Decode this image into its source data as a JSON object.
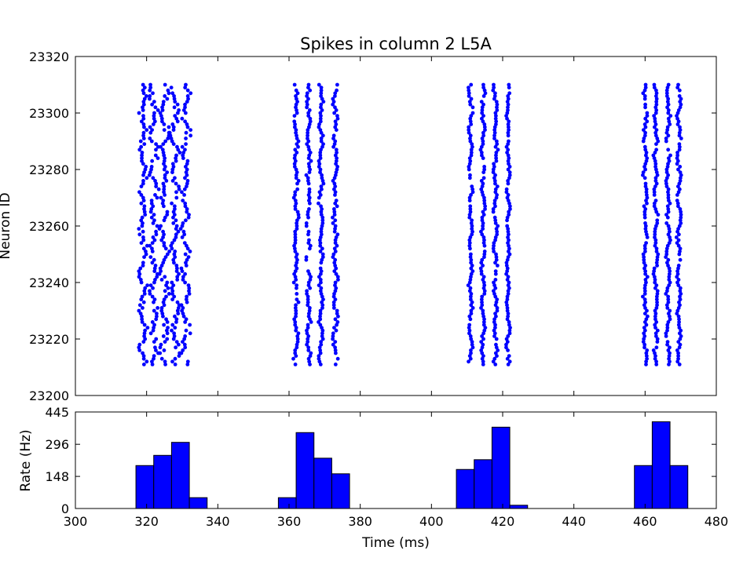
{
  "chart_data": [
    {
      "type": "scatter",
      "title": "Spikes in column 2 L5A",
      "ylabel": "Neuron ID",
      "xlim": [
        300,
        480
      ],
      "ylim": [
        23200,
        23320
      ],
      "yticks": [
        "23200",
        "23220",
        "23240",
        "23260",
        "23280",
        "23300",
        "23320"
      ],
      "marker_color": "#0000ff",
      "neuron_id_range": [
        23211,
        23310
      ],
      "bursts": [
        {
          "center_ms": 325,
          "approx_x_range_ms": [
            317,
            333
          ],
          "columns_ms": [
            319,
            322,
            325,
            328,
            331
          ],
          "jitter_ms": 1.5
        },
        {
          "center_ms": 366,
          "approx_x_range_ms": [
            361,
            374
          ],
          "columns_ms": [
            362,
            365.5,
            369,
            373
          ],
          "jitter_ms": 0.8
        },
        {
          "center_ms": 416,
          "approx_x_range_ms": [
            410,
            425
          ],
          "columns_ms": [
            411,
            414.5,
            418,
            421.5
          ],
          "jitter_ms": 0.7
        },
        {
          "center_ms": 465,
          "approx_x_range_ms": [
            459,
            471
          ],
          "columns_ms": [
            460,
            463,
            466.5,
            469.5
          ],
          "jitter_ms": 0.7
        }
      ]
    },
    {
      "type": "bar",
      "xlabel": "Time (ms)",
      "ylabel": "Rate (Hz)",
      "xlim": [
        300,
        480
      ],
      "ylim": [
        0,
        445
      ],
      "xticks": [
        "300",
        "320",
        "340",
        "360",
        "380",
        "400",
        "420",
        "440",
        "460",
        "480"
      ],
      "yticks": [
        "0",
        "148",
        "296",
        "445"
      ],
      "bin_width_ms": 5,
      "bar_color": "#0000ff",
      "bins": [
        {
          "start": 317,
          "value": 198
        },
        {
          "start": 322,
          "value": 245
        },
        {
          "start": 327,
          "value": 305
        },
        {
          "start": 332,
          "value": 50
        },
        {
          "start": 357,
          "value": 50
        },
        {
          "start": 362,
          "value": 350
        },
        {
          "start": 367,
          "value": 232
        },
        {
          "start": 372,
          "value": 160
        },
        {
          "start": 407,
          "value": 180
        },
        {
          "start": 412,
          "value": 225
        },
        {
          "start": 417,
          "value": 375
        },
        {
          "start": 422,
          "value": 15
        },
        {
          "start": 457,
          "value": 198
        },
        {
          "start": 462,
          "value": 400
        },
        {
          "start": 467,
          "value": 198
        }
      ]
    }
  ]
}
